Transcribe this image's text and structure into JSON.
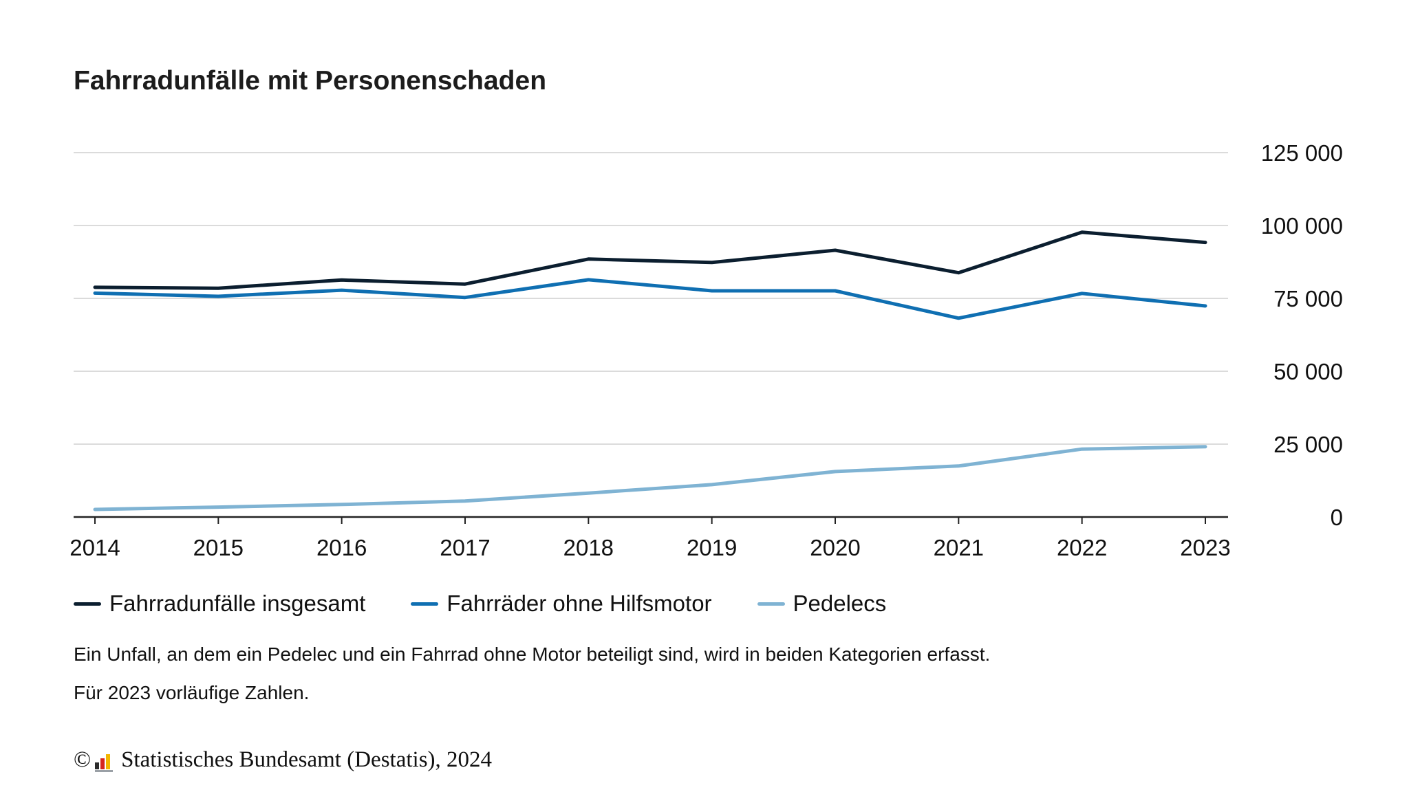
{
  "title": "Fahrradunfälle mit Personenschaden",
  "chart_data": {
    "type": "line",
    "title": "Fahrradunfälle mit Personenschaden",
    "xlabel": "",
    "ylabel": "",
    "categories": [
      "2014",
      "2015",
      "2016",
      "2017",
      "2018",
      "2019",
      "2020",
      "2021",
      "2022",
      "2023"
    ],
    "ylim": [
      0,
      125000
    ],
    "yticks": [
      0,
      25000,
      50000,
      75000,
      100000,
      125000
    ],
    "ytick_labels": [
      "0",
      "25 000",
      "50 000",
      "75 000",
      "100 000",
      "125 000"
    ],
    "grid": true,
    "series": [
      {
        "name": "Fahrradunfälle insgesamt",
        "color": "#0b1e2f",
        "values": [
          78800,
          78500,
          81300,
          79900,
          88500,
          87300,
          91500,
          83800,
          97700,
          94200
        ]
      },
      {
        "name": "Fahrräder ohne Hilfsmotor",
        "color": "#0f6fb2",
        "values": [
          76800,
          75700,
          77800,
          75300,
          81400,
          77600,
          77600,
          68200,
          76700,
          72400
        ]
      },
      {
        "name": "Pedelecs",
        "color": "#7fb3d3",
        "values": [
          2600,
          3400,
          4300,
          5500,
          8200,
          11100,
          15600,
          17500,
          23300,
          24100
        ]
      }
    ]
  },
  "notes": [
    "Ein Unfall, an dem ein Pedelec und ein Fahrrad ohne Motor beteiligt sind, wird in beiden Kategorien erfasst.",
    "Für 2023 vorläufige Zahlen."
  ],
  "footer": {
    "copyright": "©",
    "source": "Statistisches Bundesamt (Destatis), 2024",
    "logo_icon": "destatis-logo-icon"
  }
}
